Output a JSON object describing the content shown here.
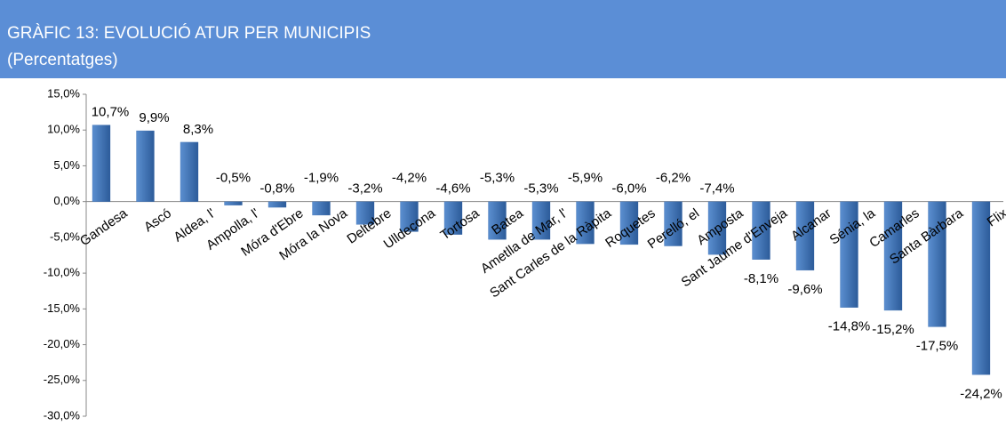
{
  "chart_data": {
    "type": "bar",
    "title": "GRÀFIC 13: EVOLUCIÓ ATUR PER MUNICIPIS",
    "subtitle": "(Percentatges)",
    "categories": [
      "Gandesa",
      "Ascó",
      "Aldea, l'",
      "Ampolla, l'",
      "Móra d'Ebre",
      "Móra la Nova",
      "Deltebre",
      "Ulldecona",
      "Tortosa",
      "Batea",
      "Ametlla de Mar, l'",
      "Sant Carles de la Ràpita",
      "Roquetes",
      "Perelló, el",
      "Amposta",
      "Sant Jaume d'Enveja",
      "Alcanar",
      "Sénia, la",
      "Camarles",
      "Santa Bàrbara",
      "Flix"
    ],
    "values": [
      10.7,
      9.9,
      8.3,
      -0.5,
      -0.8,
      -1.9,
      -3.2,
      -4.2,
      -4.6,
      -5.3,
      -5.3,
      -5.9,
      -6.0,
      -6.2,
      -7.4,
      -8.1,
      -9.6,
      -14.8,
      -15.2,
      -17.5,
      -24.2
    ],
    "value_labels": [
      "10,7%",
      "9,9%",
      "8,3%",
      "-0,5%",
      "-0,8%",
      "-1,9%",
      "-3,2%",
      "-4,2%",
      "-4,6%",
      "-5,3%",
      "-5,3%",
      "-5,9%",
      "-6,0%",
      "-6,2%",
      "-7,4%",
      "-8,1%",
      "-9,6%",
      "-14,8%",
      "-15,2%",
      "-17,5%",
      "-24,2%"
    ],
    "color": "#3a6db0",
    "ylim": [
      -30,
      15
    ],
    "yticks": [
      {
        "value": -30,
        "label": "-30,0%"
      },
      {
        "value": -25,
        "label": "-25,0%"
      },
      {
        "value": -20,
        "label": "-20,0%"
      },
      {
        "value": -15,
        "label": "-15,0%"
      },
      {
        "value": -10,
        "label": "-10,0%"
      },
      {
        "value": -5,
        "label": "-5,0%"
      },
      {
        "value": 0,
        "label": "0,0%"
      },
      {
        "value": 5,
        "label": "5,0%"
      },
      {
        "value": 10,
        "label": "10,0%"
      },
      {
        "value": 15,
        "label": "15,0%"
      }
    ],
    "grid": false
  }
}
